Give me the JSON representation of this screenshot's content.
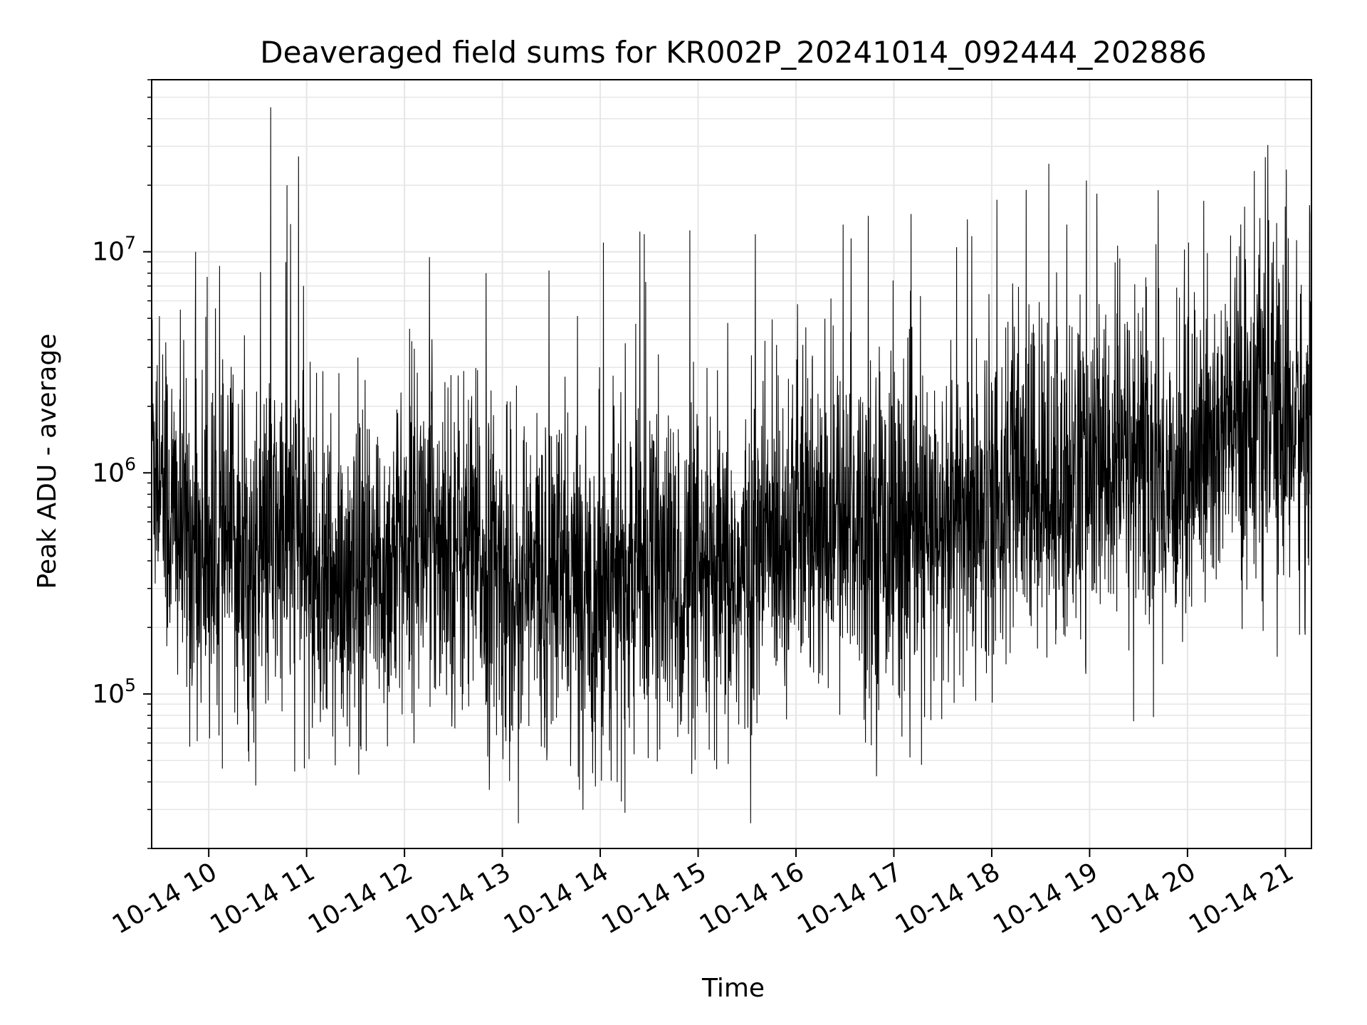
{
  "chart_data": {
    "type": "line",
    "title": "Deaveraged field sums for KR002P_20241014_092444_202886",
    "xlabel": "Time",
    "ylabel": "Peak ADU - average",
    "y_scale": "log",
    "ylim": [
      20000,
      60000000
    ],
    "xlim": [
      "2024-10-14 09:25",
      "2024-10-14 21:16"
    ],
    "grid": true,
    "line_color": "#000000",
    "grid_color": "#e6e6e6",
    "x_ticks": [
      {
        "t": "2024-10-14 10:00",
        "label": "10-14 10"
      },
      {
        "t": "2024-10-14 11:00",
        "label": "10-14 11"
      },
      {
        "t": "2024-10-14 12:00",
        "label": "10-14 12"
      },
      {
        "t": "2024-10-14 13:00",
        "label": "10-14 13"
      },
      {
        "t": "2024-10-14 14:00",
        "label": "10-14 14"
      },
      {
        "t": "2024-10-14 15:00",
        "label": "10-14 15"
      },
      {
        "t": "2024-10-14 16:00",
        "label": "10-14 16"
      },
      {
        "t": "2024-10-14 17:00",
        "label": "10-14 17"
      },
      {
        "t": "2024-10-14 18:00",
        "label": "10-14 18"
      },
      {
        "t": "2024-10-14 19:00",
        "label": "10-14 19"
      },
      {
        "t": "2024-10-14 20:00",
        "label": "10-14 20"
      },
      {
        "t": "2024-10-14 21:00",
        "label": "10-14 21"
      }
    ],
    "y_ticks": [
      {
        "value": 100000,
        "base": "10",
        "exp": "5"
      },
      {
        "value": 1000000,
        "base": "10",
        "exp": "6"
      },
      {
        "value": 10000000,
        "base": "10",
        "exp": "7"
      }
    ],
    "series": [
      {
        "x": [
          "2024-10-14 09:25",
          "2024-10-14 09:35",
          "2024-10-14 09:45",
          "2024-10-14 09:55",
          "2024-10-14 10:05",
          "2024-10-14 10:15",
          "2024-10-14 10:25",
          "2024-10-14 10:35",
          "2024-10-14 10:45",
          "2024-10-14 10:55",
          "2024-10-14 11:05",
          "2024-10-14 11:15",
          "2024-10-14 11:25",
          "2024-10-14 11:35",
          "2024-10-14 11:45",
          "2024-10-14 11:55",
          "2024-10-14 12:05",
          "2024-10-14 12:15",
          "2024-10-14 12:25",
          "2024-10-14 12:35",
          "2024-10-14 12:45",
          "2024-10-14 12:55",
          "2024-10-14 13:05",
          "2024-10-14 13:15",
          "2024-10-14 13:25",
          "2024-10-14 13:35",
          "2024-10-14 13:45",
          "2024-10-14 13:55",
          "2024-10-14 14:05",
          "2024-10-14 14:15",
          "2024-10-14 14:25",
          "2024-10-14 14:35",
          "2024-10-14 14:45",
          "2024-10-14 14:55",
          "2024-10-14 15:05",
          "2024-10-14 15:15",
          "2024-10-14 15:25",
          "2024-10-14 15:35",
          "2024-10-14 15:45",
          "2024-10-14 15:55",
          "2024-10-14 16:05",
          "2024-10-14 16:15",
          "2024-10-14 16:25",
          "2024-10-14 16:35",
          "2024-10-14 16:45",
          "2024-10-14 16:55",
          "2024-10-14 17:05",
          "2024-10-14 17:15",
          "2024-10-14 17:25",
          "2024-10-14 17:35",
          "2024-10-14 17:45",
          "2024-10-14 17:55",
          "2024-10-14 18:05",
          "2024-10-14 18:15",
          "2024-10-14 18:25",
          "2024-10-14 18:35",
          "2024-10-14 18:45",
          "2024-10-14 18:55",
          "2024-10-14 19:05",
          "2024-10-14 19:15",
          "2024-10-14 19:25",
          "2024-10-14 19:35",
          "2024-10-14 19:45",
          "2024-10-14 19:55",
          "2024-10-14 20:05",
          "2024-10-14 20:15",
          "2024-10-14 20:25",
          "2024-10-14 20:35",
          "2024-10-14 20:45",
          "2024-10-14 20:55",
          "2024-10-14 21:05",
          "2024-10-14 21:15"
        ],
        "y": [
          1500000,
          700000,
          500000,
          450000,
          400000,
          500000,
          350000,
          450000,
          500000,
          550000,
          350000,
          300000,
          250000,
          280000,
          350000,
          400000,
          600000,
          500000,
          550000,
          450000,
          400000,
          350000,
          300000,
          320000,
          330000,
          350000,
          300000,
          280000,
          350000,
          300000,
          380000,
          350000,
          320000,
          300000,
          280000,
          300000,
          320000,
          400000,
          550000,
          600000,
          580000,
          500000,
          600000,
          650000,
          600000,
          580000,
          550000,
          500000,
          480000,
          550000,
          650000,
          700000,
          800000,
          900000,
          850000,
          800000,
          900000,
          1000000,
          950000,
          1100000,
          1200000,
          1000000,
          900000,
          1000000,
          1100000,
          1300000,
          1600000,
          1800000,
          2000000,
          1700000,
          1600000,
          1500000
        ],
        "spikes": [
          {
            "t": "2024-10-14 09:52",
            "y": 10000000
          },
          {
            "t": "2024-10-14 09:59",
            "y": 7700000
          },
          {
            "t": "2024-10-14 10:38",
            "y": 45000000
          },
          {
            "t": "2024-10-14 10:48",
            "y": 20000000
          },
          {
            "t": "2024-10-14 10:55",
            "y": 27000000
          },
          {
            "t": "2024-10-14 12:50",
            "y": 8000000
          },
          {
            "t": "2024-10-14 14:02",
            "y": 11000000
          },
          {
            "t": "2024-10-14 14:27",
            "y": 12000000
          },
          {
            "t": "2024-10-14 14:55",
            "y": 12500000
          },
          {
            "t": "2024-10-14 15:35",
            "y": 12000000
          },
          {
            "t": "2024-10-14 17:45",
            "y": 14000000
          },
          {
            "t": "2024-10-14 18:35",
            "y": 25000000
          },
          {
            "t": "2024-10-14 18:58",
            "y": 21000000
          },
          {
            "t": "2024-10-14 19:42",
            "y": 19000000
          },
          {
            "t": "2024-10-14 20:10",
            "y": 17000000
          },
          {
            "t": "2024-10-14 20:35",
            "y": 16000000
          },
          {
            "t": "2024-10-14 21:00",
            "y": 16000000
          }
        ]
      }
    ]
  }
}
